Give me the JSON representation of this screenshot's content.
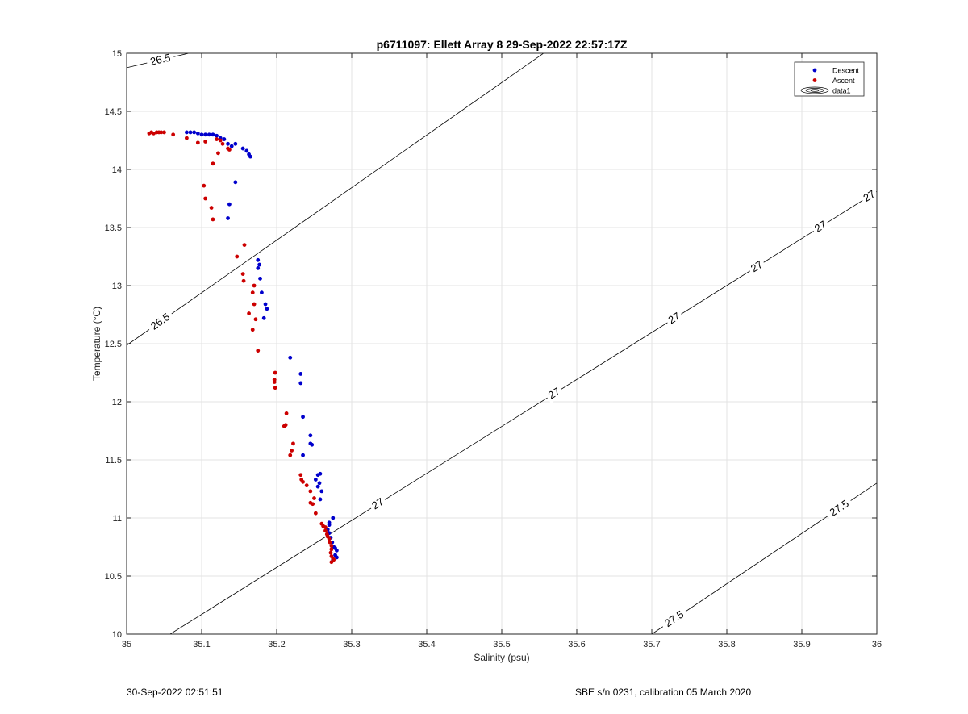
{
  "chart_data": {
    "type": "scatter",
    "title": "p6711097: Ellett Array 8 29-Sep-2022 22:57:17Z",
    "xlabel": "Salinity (psu)",
    "ylabel": "Temperature (°C)",
    "xlim": [
      35,
      36
    ],
    "ylim": [
      10,
      15
    ],
    "xticks": [
      "35",
      "35.1",
      "35.2",
      "35.3",
      "35.4",
      "35.5",
      "35.6",
      "35.7",
      "35.8",
      "35.9",
      "36"
    ],
    "yticks": [
      "10",
      "10.5",
      "11",
      "11.5",
      "12",
      "12.5",
      "13",
      "13.5",
      "14",
      "14.5",
      "15"
    ],
    "grid": true,
    "legend_position": "top-right",
    "legend": [
      {
        "label": "Descent",
        "color": "#0000cc",
        "marker": "dot"
      },
      {
        "label": "Ascent",
        "color": "#cc0000",
        "marker": "dot"
      },
      {
        "label": "data1",
        "marker": "contour"
      }
    ],
    "series": [
      {
        "name": "Descent",
        "color": "#0000cc",
        "points": [
          [
            35.08,
            14.32
          ],
          [
            35.085,
            14.32
          ],
          [
            35.09,
            14.32
          ],
          [
            35.095,
            14.31
          ],
          [
            35.1,
            14.3
          ],
          [
            35.105,
            14.3
          ],
          [
            35.11,
            14.3
          ],
          [
            35.115,
            14.3
          ],
          [
            35.12,
            14.29
          ],
          [
            35.125,
            14.27
          ],
          [
            35.13,
            14.26
          ],
          [
            35.135,
            14.22
          ],
          [
            35.14,
            14.2
          ],
          [
            35.145,
            14.22
          ],
          [
            35.155,
            14.18
          ],
          [
            35.16,
            14.16
          ],
          [
            35.163,
            14.13
          ],
          [
            35.165,
            14.11
          ],
          [
            35.145,
            13.89
          ],
          [
            35.137,
            13.7
          ],
          [
            35.135,
            13.58
          ],
          [
            35.175,
            13.22
          ],
          [
            35.177,
            13.18
          ],
          [
            35.175,
            13.15
          ],
          [
            35.178,
            13.06
          ],
          [
            35.18,
            12.94
          ],
          [
            35.185,
            12.84
          ],
          [
            35.187,
            12.8
          ],
          [
            35.183,
            12.72
          ],
          [
            35.218,
            12.38
          ],
          [
            35.232,
            12.24
          ],
          [
            35.232,
            12.16
          ],
          [
            35.235,
            11.87
          ],
          [
            35.245,
            11.71
          ],
          [
            35.245,
            11.64
          ],
          [
            35.247,
            11.63
          ],
          [
            35.235,
            11.54
          ],
          [
            35.258,
            11.38
          ],
          [
            35.255,
            11.37
          ],
          [
            35.252,
            11.33
          ],
          [
            35.257,
            11.3
          ],
          [
            35.255,
            11.27
          ],
          [
            35.26,
            11.23
          ],
          [
            35.258,
            11.16
          ],
          [
            35.275,
            11
          ],
          [
            35.27,
            10.96
          ],
          [
            35.27,
            10.94
          ],
          [
            35.268,
            10.9
          ],
          [
            35.27,
            10.87
          ],
          [
            35.272,
            10.83
          ],
          [
            35.274,
            10.79
          ],
          [
            35.276,
            10.75
          ],
          [
            35.278,
            10.74
          ],
          [
            35.28,
            10.72
          ],
          [
            35.278,
            10.68
          ],
          [
            35.28,
            10.66
          ],
          [
            35.275,
            10.64
          ]
        ]
      },
      {
        "name": "Ascent",
        "color": "#cc0000",
        "points": [
          [
            35.03,
            14.31
          ],
          [
            35.033,
            14.32
          ],
          [
            35.036,
            14.31
          ],
          [
            35.04,
            14.32
          ],
          [
            35.043,
            14.32
          ],
          [
            35.046,
            14.32
          ],
          [
            35.05,
            14.32
          ],
          [
            35.062,
            14.3
          ],
          [
            35.08,
            14.27
          ],
          [
            35.095,
            14.23
          ],
          [
            35.105,
            14.24
          ],
          [
            35.12,
            14.26
          ],
          [
            35.125,
            14.25
          ],
          [
            35.128,
            14.22
          ],
          [
            35.135,
            14.18
          ],
          [
            35.137,
            14.17
          ],
          [
            35.122,
            14.14
          ],
          [
            35.115,
            14.05
          ],
          [
            35.103,
            13.86
          ],
          [
            35.105,
            13.75
          ],
          [
            35.113,
            13.67
          ],
          [
            35.115,
            13.57
          ],
          [
            35.157,
            13.35
          ],
          [
            35.147,
            13.25
          ],
          [
            35.155,
            13.1
          ],
          [
            35.156,
            13.04
          ],
          [
            35.17,
            13
          ],
          [
            35.168,
            12.94
          ],
          [
            35.17,
            12.84
          ],
          [
            35.163,
            12.76
          ],
          [
            35.168,
            12.62
          ],
          [
            35.172,
            12.71
          ],
          [
            35.175,
            12.44
          ],
          [
            35.198,
            12.25
          ],
          [
            35.197,
            12.19
          ],
          [
            35.197,
            12.17
          ],
          [
            35.198,
            12.12
          ],
          [
            35.213,
            11.9
          ],
          [
            35.212,
            11.8
          ],
          [
            35.21,
            11.79
          ],
          [
            35.22,
            11.58
          ],
          [
            35.222,
            11.64
          ],
          [
            35.218,
            11.54
          ],
          [
            35.232,
            11.37
          ],
          [
            35.233,
            11.33
          ],
          [
            35.235,
            11.31
          ],
          [
            35.24,
            11.28
          ],
          [
            35.245,
            11.23
          ],
          [
            35.25,
            11.17
          ],
          [
            35.245,
            11.13
          ],
          [
            35.248,
            11.12
          ],
          [
            35.252,
            11.04
          ],
          [
            35.26,
            10.95
          ],
          [
            35.262,
            10.93
          ],
          [
            35.265,
            10.92
          ],
          [
            35.265,
            10.89
          ],
          [
            35.267,
            10.86
          ],
          [
            35.268,
            10.84
          ],
          [
            35.27,
            10.82
          ],
          [
            35.271,
            10.79
          ],
          [
            35.273,
            10.76
          ],
          [
            35.273,
            10.73
          ],
          [
            35.272,
            10.7
          ],
          [
            35.273,
            10.67
          ],
          [
            35.275,
            10.65
          ],
          [
            35.276,
            10.64
          ],
          [
            35.273,
            10.62
          ]
        ]
      }
    ],
    "contours": [
      {
        "level": "26.5",
        "line": [
          [
            35,
            14.876
          ],
          [
            35.79,
            16.06
          ]
        ],
        "labels": [
          [
            35.045,
            15.02
          ],
          [
            35.355,
            13.24
          ],
          [
            35.505,
            14.08
          ],
          [
            35.825,
            14.88
          ]
        ]
      },
      {
        "level": "26.5",
        "line": [
          [
            35,
            12.486
          ],
          [
            35.79,
            16.06
          ]
        ],
        "labels": [
          [
            35.045,
            12.63
          ]
        ]
      },
      {
        "level": "27",
        "line": [
          [
            35.058,
            10
          ],
          [
            36,
            13.81
          ]
        ],
        "labels": [
          [
            35.335,
            11.11
          ],
          [
            35.57,
            11.95
          ],
          [
            35.73,
            12.75
          ],
          [
            35.84,
            13.25
          ],
          [
            35.99,
            13.75
          ],
          [
            35.925,
            13.35
          ]
        ]
      },
      {
        "level": "27.5",
        "line": [
          [
            35.7,
            10
          ],
          [
            36,
            11.3
          ]
        ],
        "labels": [
          [
            35.73,
            10.1
          ],
          [
            35.95,
            11.06
          ]
        ]
      }
    ]
  },
  "footer": {
    "left": "30-Sep-2022 02:51:51",
    "right": "SBE s/n 0231, calibration 05 March 2020"
  }
}
